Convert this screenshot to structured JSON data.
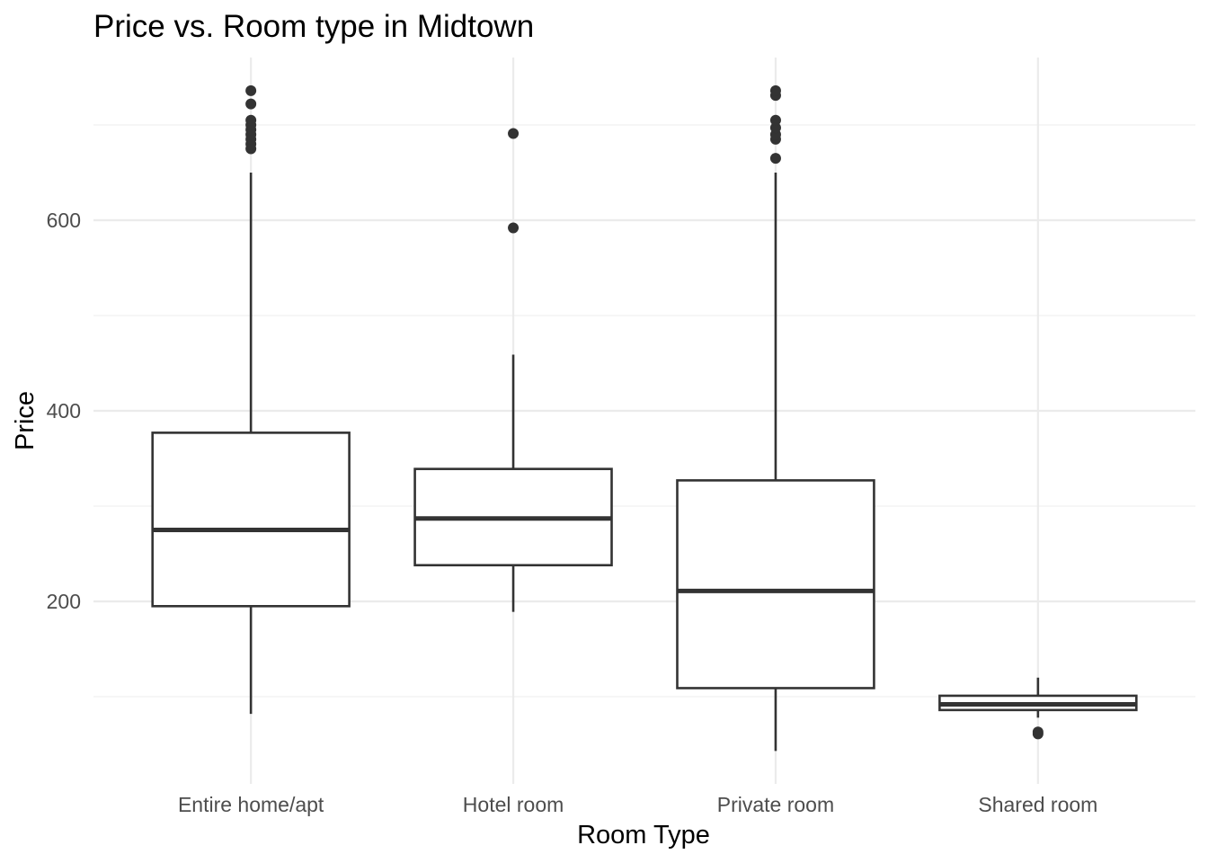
{
  "chart_data": {
    "type": "boxplot",
    "title": "Price vs. Room type in Midtown",
    "xlabel": "Room Type",
    "ylabel": "Price",
    "ylim": [
      20,
      770
    ],
    "yticks": [
      200,
      400,
      600
    ],
    "grid": true,
    "categories": [
      "Entire home/apt",
      "Hotel room",
      "Private room",
      "Shared room"
    ],
    "boxes": [
      {
        "category": "Entire home/apt",
        "whisker_low": 82,
        "q1": 195,
        "median": 275,
        "q3": 377,
        "whisker_high": 650,
        "outliers": [
          675,
          680,
          685,
          690,
          695,
          700,
          705,
          722,
          736
        ]
      },
      {
        "category": "Hotel room",
        "whisker_low": 189,
        "q1": 238,
        "median": 287,
        "q3": 339,
        "whisker_high": 459,
        "outliers": [
          592,
          691
        ]
      },
      {
        "category": "Private room",
        "whisker_low": 43,
        "q1": 109,
        "median": 211,
        "q3": 327,
        "whisker_high": 650,
        "outliers": [
          665,
          685,
          690,
          697,
          705,
          731,
          736
        ]
      },
      {
        "category": "Shared room",
        "whisker_low": 78,
        "q1": 86,
        "median": 92,
        "q3": 101,
        "whisker_high": 120,
        "outliers": [
          61,
          63
        ]
      }
    ],
    "colors": {
      "box_stroke": "#333333",
      "grid": "#ebebeb",
      "background": "#ffffff"
    }
  }
}
